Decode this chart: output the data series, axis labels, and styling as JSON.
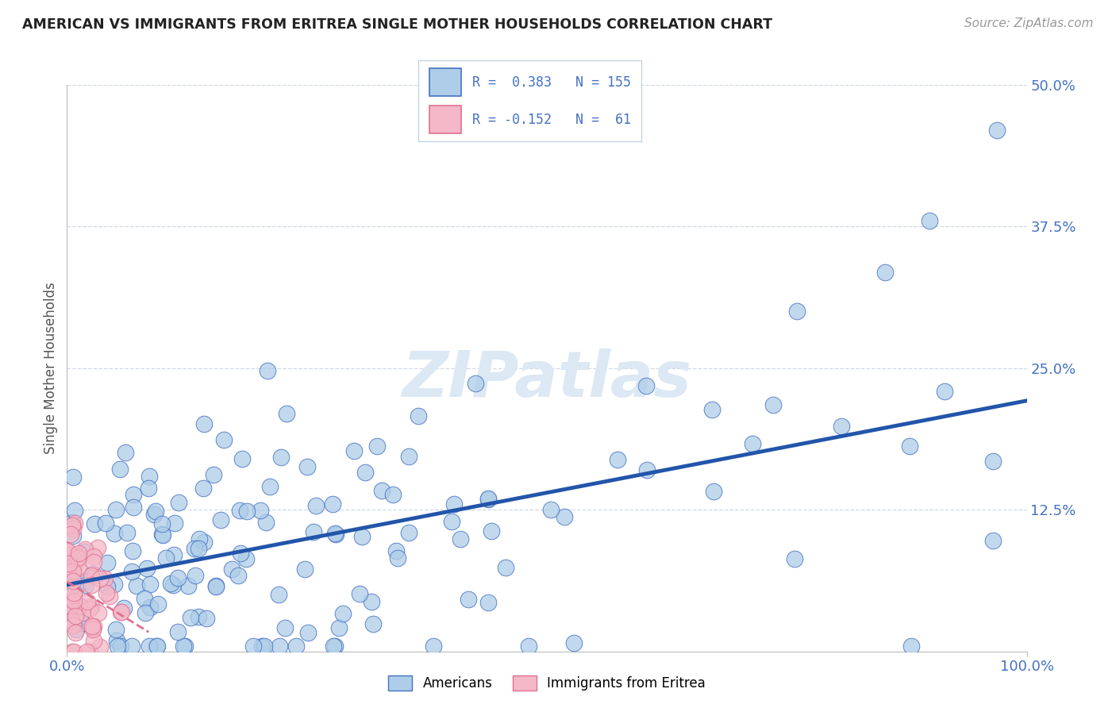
{
  "title": "AMERICAN VS IMMIGRANTS FROM ERITREA SINGLE MOTHER HOUSEHOLDS CORRELATION CHART",
  "source": "Source: ZipAtlas.com",
  "ylabel": "Single Mother Households",
  "xlim": [
    0,
    1.0
  ],
  "ylim": [
    0,
    0.5
  ],
  "yticks": [
    0.125,
    0.25,
    0.375,
    0.5
  ],
  "ytick_labels": [
    "12.5%",
    "25.0%",
    "37.5%",
    "50.0%"
  ],
  "xtick_labels": [
    "0.0%",
    "100.0%"
  ],
  "r_american": 0.383,
  "n_american": 155,
  "r_eritrea": -0.152,
  "n_eritrea": 61,
  "legend_label_american": "Americans",
  "legend_label_eritrea": "Immigrants from Eritrea",
  "blue_fill": "#aecde8",
  "blue_edge": "#4472c4",
  "pink_fill": "#f4b8c8",
  "pink_edge": "#e07090",
  "blue_line": "#2255aa",
  "pink_line": "#e07090",
  "title_color": "#222222",
  "tick_color": "#4472c4",
  "ylabel_color": "#555555",
  "watermark_color": "#dce8f4",
  "grid_color": "#d0d8e8",
  "background_color": "#ffffff"
}
